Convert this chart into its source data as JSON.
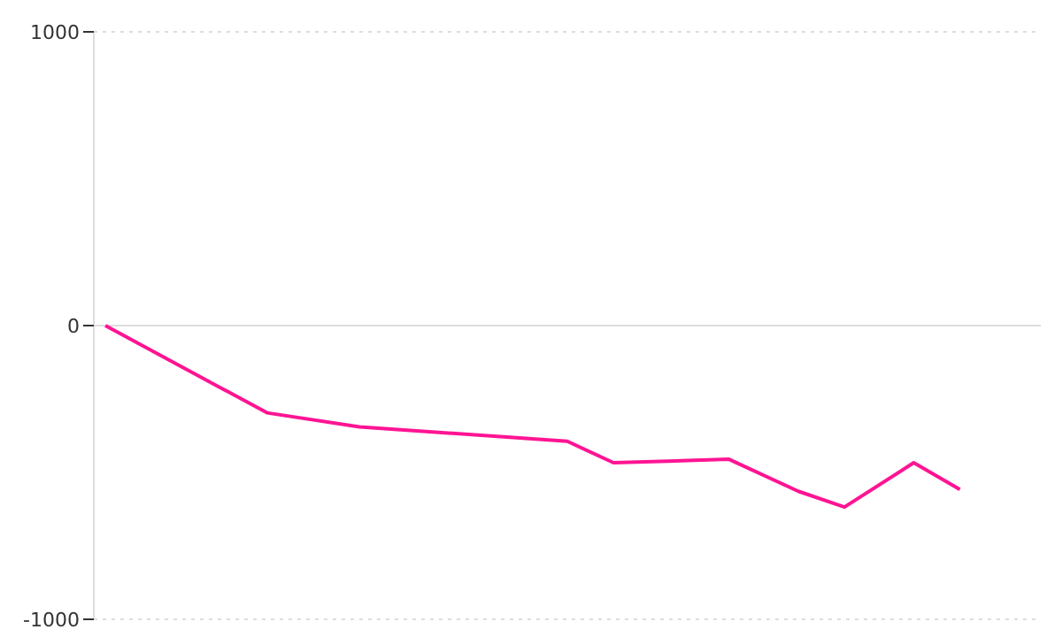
{
  "chart_data": {
    "type": "line",
    "categories": [
      null,
      null,
      null,
      null,
      null,
      null,
      null,
      null,
      null,
      null,
      null,
      null,
      null,
      null,
      null,
      null,
      null,
      null,
      null,
      null,
      null,
      null,
      null,
      null,
      null,
      null,
      null,
      null,
      null,
      null,
      null,
      null,
      null,
      null,
      null,
      null,
      null,
      null,
      null,
      null,
      null
    ],
    "series": [
      {
        "color": "#ff1493",
        "values": [
          0,
          null,
          null,
          null,
          null,
          null,
          null,
          -297,
          null,
          null,
          null,
          -345,
          null,
          null,
          null,
          null,
          null,
          null,
          null,
          null,
          -394,
          null,
          -467,
          null,
          null,
          null,
          null,
          -455,
          null,
          null,
          -564,
          null,
          -618,
          null,
          null,
          -467,
          null,
          -558,
          null,
          null,
          null
        ]
      }
    ],
    "ylim": [
      -1000,
      1000
    ],
    "yticks": [
      -1000,
      0,
      1000
    ],
    "grid": "y",
    "marker": "none",
    "line_style": "solid"
  }
}
